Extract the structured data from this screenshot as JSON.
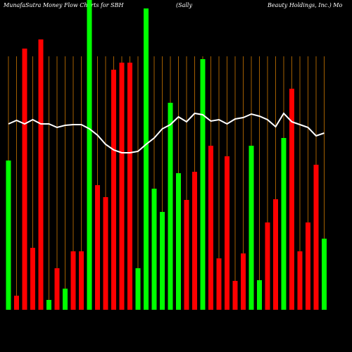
{
  "chart_data": {
    "type": "bar-line",
    "title": "MunafaSutra  Money Flow  Charts for SBH",
    "title_mid": "(Sally",
    "title_right": "Beauty Holdings, Inc.) Mo",
    "categories": [
      null,
      null,
      null,
      null,
      null,
      null,
      null,
      null,
      null,
      null,
      null,
      null,
      null,
      null,
      null,
      null,
      null,
      null,
      null,
      null,
      null,
      null,
      null,
      null,
      null,
      null,
      null,
      null,
      null,
      null,
      null,
      null,
      null,
      null,
      null,
      null,
      null,
      null,
      null,
      null
    ],
    "bars": {
      "values": [
        212,
        20,
        371,
        88,
        384,
        14,
        59,
        30,
        83,
        83,
        440,
        177,
        160,
        341,
        351,
        351,
        59,
        428,
        172,
        139,
        294,
        194,
        156,
        196,
        356,
        233,
        73,
        218,
        41,
        80,
        233,
        42,
        124,
        157,
        244,
        314,
        83,
        124,
        206,
        101
      ],
      "colors": [
        "#00ff00",
        "#ff0000",
        "#ff0000",
        "#ff0000",
        "#ff0000",
        "#00ff00",
        "#ff0000",
        "#00ff00",
        "#ff0000",
        "#ff0000",
        "#00ff00",
        "#ff0000",
        "#ff0000",
        "#ff0000",
        "#ff0000",
        "#ff0000",
        "#00ff00",
        "#00ff00",
        "#00ff00",
        "#00ff00",
        "#00ff00",
        "#00ff00",
        "#ff0000",
        "#ff0000",
        "#00ff00",
        "#ff0000",
        "#ff0000",
        "#ff0000",
        "#ff0000",
        "#ff0000",
        "#00ff00",
        "#00ff00",
        "#ff0000",
        "#ff0000",
        "#00ff00",
        "#ff0000",
        "#ff0000",
        "#ff0000",
        "#ff0000",
        "#00ff00"
      ]
    },
    "line": {
      "color": "#ffffff",
      "values": [
        264,
        269,
        264,
        270,
        264,
        264,
        259,
        262,
        263,
        263,
        257,
        248,
        235,
        227,
        223,
        223,
        225,
        235,
        244,
        257,
        263,
        274,
        267,
        279,
        277,
        268,
        270,
        264,
        271,
        273,
        278,
        275,
        270,
        260,
        279,
        267,
        263,
        259,
        247,
        251
      ]
    },
    "ylim": [
      0,
      440
    ],
    "grid_color": "#cc7700"
  }
}
